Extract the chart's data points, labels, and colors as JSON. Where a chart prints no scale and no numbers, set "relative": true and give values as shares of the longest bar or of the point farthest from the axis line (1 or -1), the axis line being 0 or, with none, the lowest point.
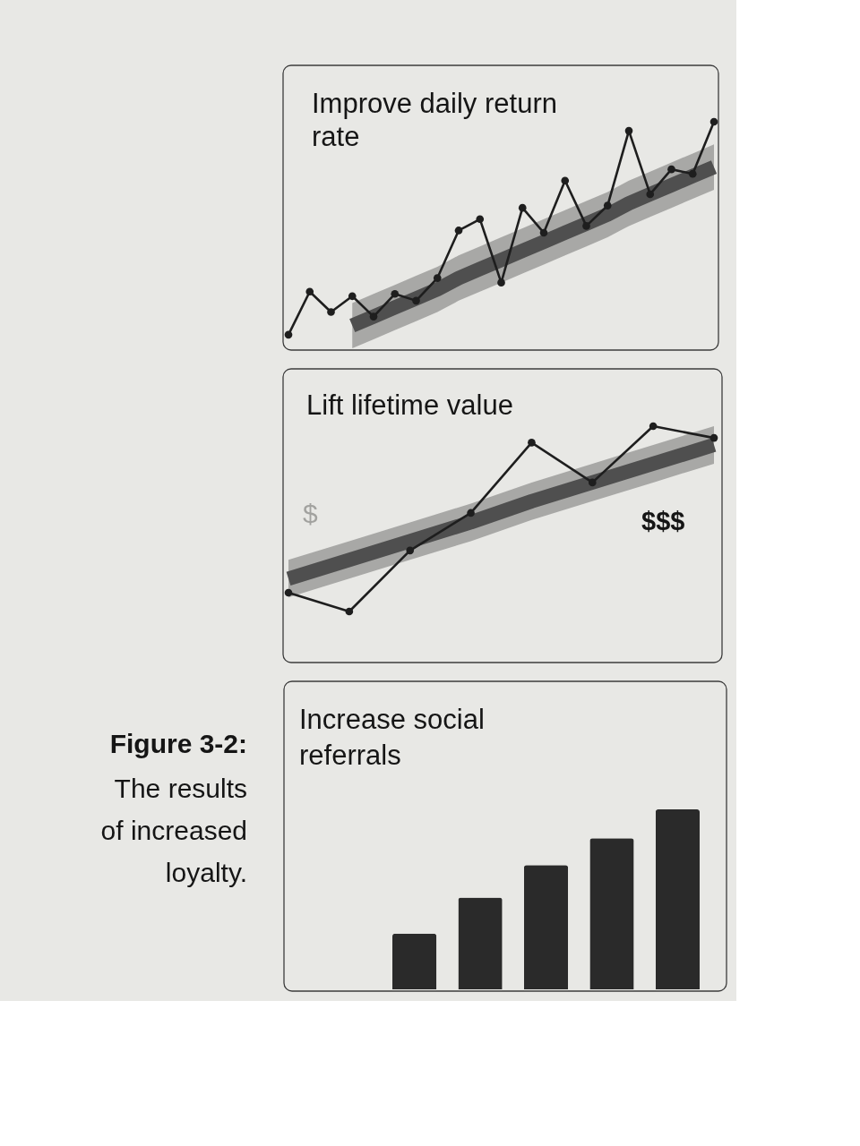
{
  "chart_data": [
    {
      "type": "line",
      "title": "Improve daily return rate",
      "relative": true,
      "tick_labels": false,
      "marker": "circle",
      "categories": [
        null,
        null,
        null,
        null,
        null,
        null,
        null,
        null,
        null,
        null,
        null,
        null,
        null,
        null,
        null,
        null,
        null,
        null,
        null,
        null,
        null
      ],
      "series": [
        {
          "marker": "none",
          "color": "#4f4f4f",
          "values": [
            null,
            null,
            null,
            0.1,
            0.14,
            0.18,
            0.22,
            0.26,
            0.31,
            0.35,
            0.39,
            0.43,
            0.47,
            0.51,
            0.55,
            0.59,
            0.64,
            0.68,
            0.72,
            0.76,
            0.8
          ],
          "lower": [
            null,
            null,
            null,
            0,
            0.04,
            0.08,
            0.12,
            0.16,
            0.21,
            0.25,
            0.29,
            0.33,
            0.37,
            0.41,
            0.45,
            0.49,
            0.54,
            0.58,
            0.62,
            0.66,
            0.7
          ],
          "upper": [
            null,
            null,
            null,
            0.2,
            0.24,
            0.28,
            0.32,
            0.36,
            0.41,
            0.45,
            0.49,
            0.53,
            0.57,
            0.61,
            0.65,
            0.69,
            0.74,
            0.78,
            0.82,
            0.86,
            0.9
          ]
        },
        {
          "color": "#1e1e1e",
          "values": [
            0.06,
            0.25,
            0.16,
            0.23,
            0.14,
            0.24,
            0.21,
            0.31,
            0.52,
            0.57,
            0.29,
            0.62,
            0.51,
            0.74,
            0.54,
            0.63,
            0.96,
            0.68,
            0.79,
            0.77,
            1
          ]
        }
      ]
    },
    {
      "type": "line",
      "title": "Lift lifetime value",
      "relative": true,
      "tick_labels": false,
      "marker": "circle",
      "annotations": [
        "$",
        "$$$"
      ],
      "categories": [
        null,
        null,
        null,
        null,
        null,
        null,
        null,
        null
      ],
      "series": [
        {
          "marker": "none",
          "color": "#4f4f4f",
          "values": [
            0.35,
            0.43,
            0.51,
            0.59,
            0.68,
            0.76,
            0.84,
            0.92
          ],
          "lower": [
            0.27,
            0.35,
            0.43,
            0.51,
            0.6,
            0.68,
            0.76,
            0.84
          ],
          "upper": [
            0.43,
            0.51,
            0.59,
            0.67,
            0.76,
            0.84,
            0.92,
            1
          ]
        },
        {
          "color": "#1e1e1e",
          "values": [
            0.29,
            0.21,
            0.47,
            0.63,
            0.93,
            0.76,
            1,
            0.95
          ]
        }
      ]
    },
    {
      "type": "other",
      "title": "Figure 3-2:",
      "subtitle": "The results of increased loyalty."
    },
    {
      "type": "bar",
      "title": "Increase social referrals",
      "relative": true,
      "tick_labels": false,
      "categories": [
        null,
        null,
        null,
        null,
        null
      ],
      "values": [
        0.31,
        0.51,
        0.69,
        0.84,
        1
      ],
      "color": "#2a2a2a"
    }
  ]
}
